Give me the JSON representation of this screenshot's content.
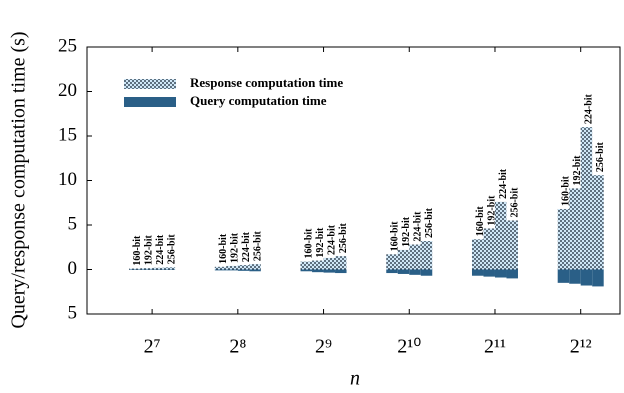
{
  "chart_data": {
    "type": "grouped-bar",
    "y_label": "Query/response computation time (s)",
    "x_label": "n",
    "categories": [
      "2⁷",
      "2⁸",
      "2⁹",
      "2¹⁰",
      "2¹¹",
      "2¹²"
    ],
    "bit_labels": [
      "160-bit",
      "192-bit",
      "224-bit",
      "256-bit"
    ],
    "series": [
      {
        "name": "Response computation time",
        "color": "#cfe7f7",
        "pattern": "dots",
        "values": [
          [
            0.1,
            0.15,
            0.2,
            0.25
          ],
          [
            0.3,
            0.4,
            0.5,
            0.6
          ],
          [
            0.9,
            1.0,
            1.3,
            1.5
          ],
          [
            1.7,
            2.2,
            2.8,
            3.2
          ],
          [
            3.4,
            4.6,
            7.6,
            5.5
          ],
          [
            6.8,
            9.1,
            16.0,
            10.6
          ]
        ]
      },
      {
        "name": "Query computation time",
        "color": "#2a5f87",
        "pattern": "solid",
        "values": [
          [
            -0.05,
            -0.05,
            -0.05,
            -0.05
          ],
          [
            -0.1,
            -0.1,
            -0.15,
            -0.2
          ],
          [
            -0.2,
            -0.3,
            -0.35,
            -0.4
          ],
          [
            -0.4,
            -0.5,
            -0.6,
            -0.7
          ],
          [
            -0.7,
            -0.8,
            -0.9,
            -1.0
          ],
          [
            -1.5,
            -1.6,
            -1.8,
            -1.9
          ]
        ]
      }
    ],
    "ylim": [
      -5,
      25
    ],
    "yticks": [
      {
        "value": -5,
        "label": "5"
      },
      0,
      5,
      10,
      15,
      20,
      25
    ],
    "legend": "upper left"
  }
}
